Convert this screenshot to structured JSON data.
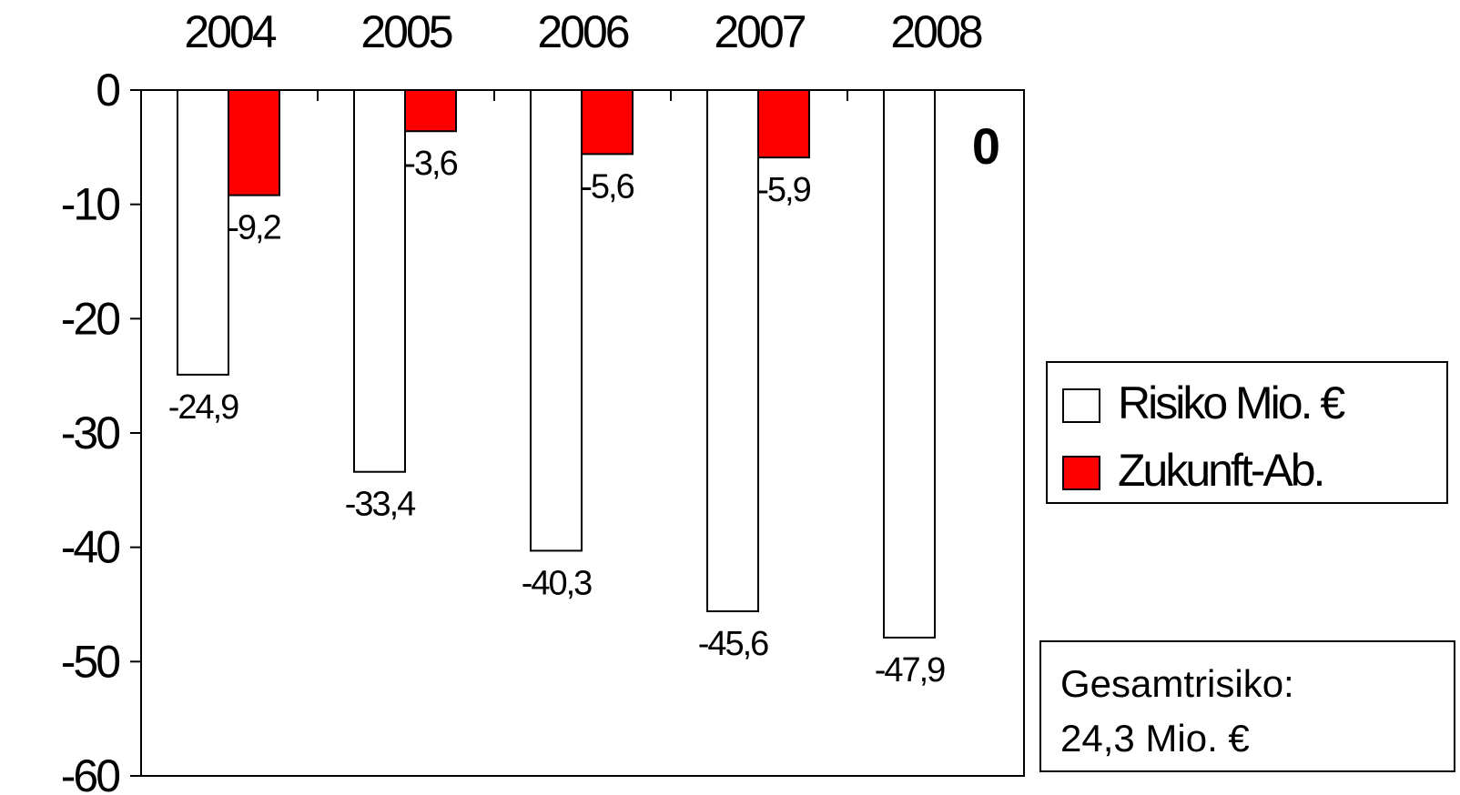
{
  "chart_data": {
    "type": "bar",
    "categories": [
      "2004",
      "2005",
      "2006",
      "2007",
      "2008"
    ],
    "series": [
      {
        "name": "Risiko Mio. €",
        "values": [
          -24.9,
          -33.4,
          -40.3,
          -45.6,
          -47.9
        ],
        "labels": [
          "-24,9",
          "-33,4",
          "-40,3",
          "-45,6",
          "-47,9"
        ],
        "color": "#ffffff"
      },
      {
        "name": "Zukunft-Ab.",
        "values": [
          -9.2,
          -3.6,
          -5.6,
          -5.9,
          0
        ],
        "labels": [
          "-9,2",
          "-3,6",
          "-5,6",
          "-5,9",
          ""
        ],
        "color": "#ff0000"
      }
    ],
    "ylim": [
      -60,
      0
    ],
    "yticks": [
      0,
      -10,
      -20,
      -30,
      -40,
      -50,
      -60
    ],
    "ytick_labels": [
      "0",
      "-10",
      "-20",
      "-30",
      "-40",
      "-50",
      "-60"
    ],
    "annotation": "0",
    "legend_position": "right",
    "grid": false
  },
  "info_box": {
    "line1": "Gesamtrisiko:",
    "line2": "24,3 Mio. €"
  }
}
